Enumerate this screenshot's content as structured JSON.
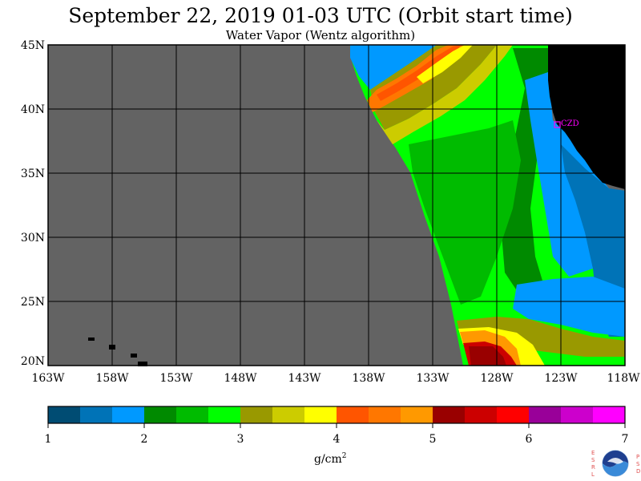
{
  "header": {
    "title": "September 22, 2019  01-03 UTC  (Orbit start time)",
    "subtitle": "Water Vapor (Wentz algorithm)"
  },
  "map": {
    "lat_labels": [
      "45N",
      "40N",
      "35N",
      "30N",
      "25N",
      "20N"
    ],
    "lon_labels": [
      "163W",
      "158W",
      "153W",
      "148W",
      "143W",
      "138W",
      "133W",
      "128W",
      "123W",
      "118W"
    ],
    "station_label": "CZD",
    "colors": {
      "no_data": "#636363",
      "land": "#000000",
      "grid": "#000000",
      "station": "#ff00ff"
    }
  },
  "colorbar": {
    "tick_labels": [
      "1",
      "2",
      "3",
      "4",
      "5",
      "6",
      "7"
    ],
    "units_base": "g/cm",
    "units_exp": "2",
    "colors": [
      "#004c73",
      "#0073b7",
      "#0099ff",
      "#008a00",
      "#00bb00",
      "#00ff00",
      "#999900",
      "#cccc00",
      "#ffff00",
      "#ff5500",
      "#ff7700",
      "#ff9900",
      "#990000",
      "#cc0000",
      "#ff0000",
      "#990099",
      "#cc00cc",
      "#ff00ff"
    ]
  },
  "logo": {
    "left_letters": [
      "E",
      "S",
      "R",
      "L"
    ],
    "right_letters": [
      "P",
      "S",
      "D"
    ],
    "name": "noaa-logo"
  }
}
